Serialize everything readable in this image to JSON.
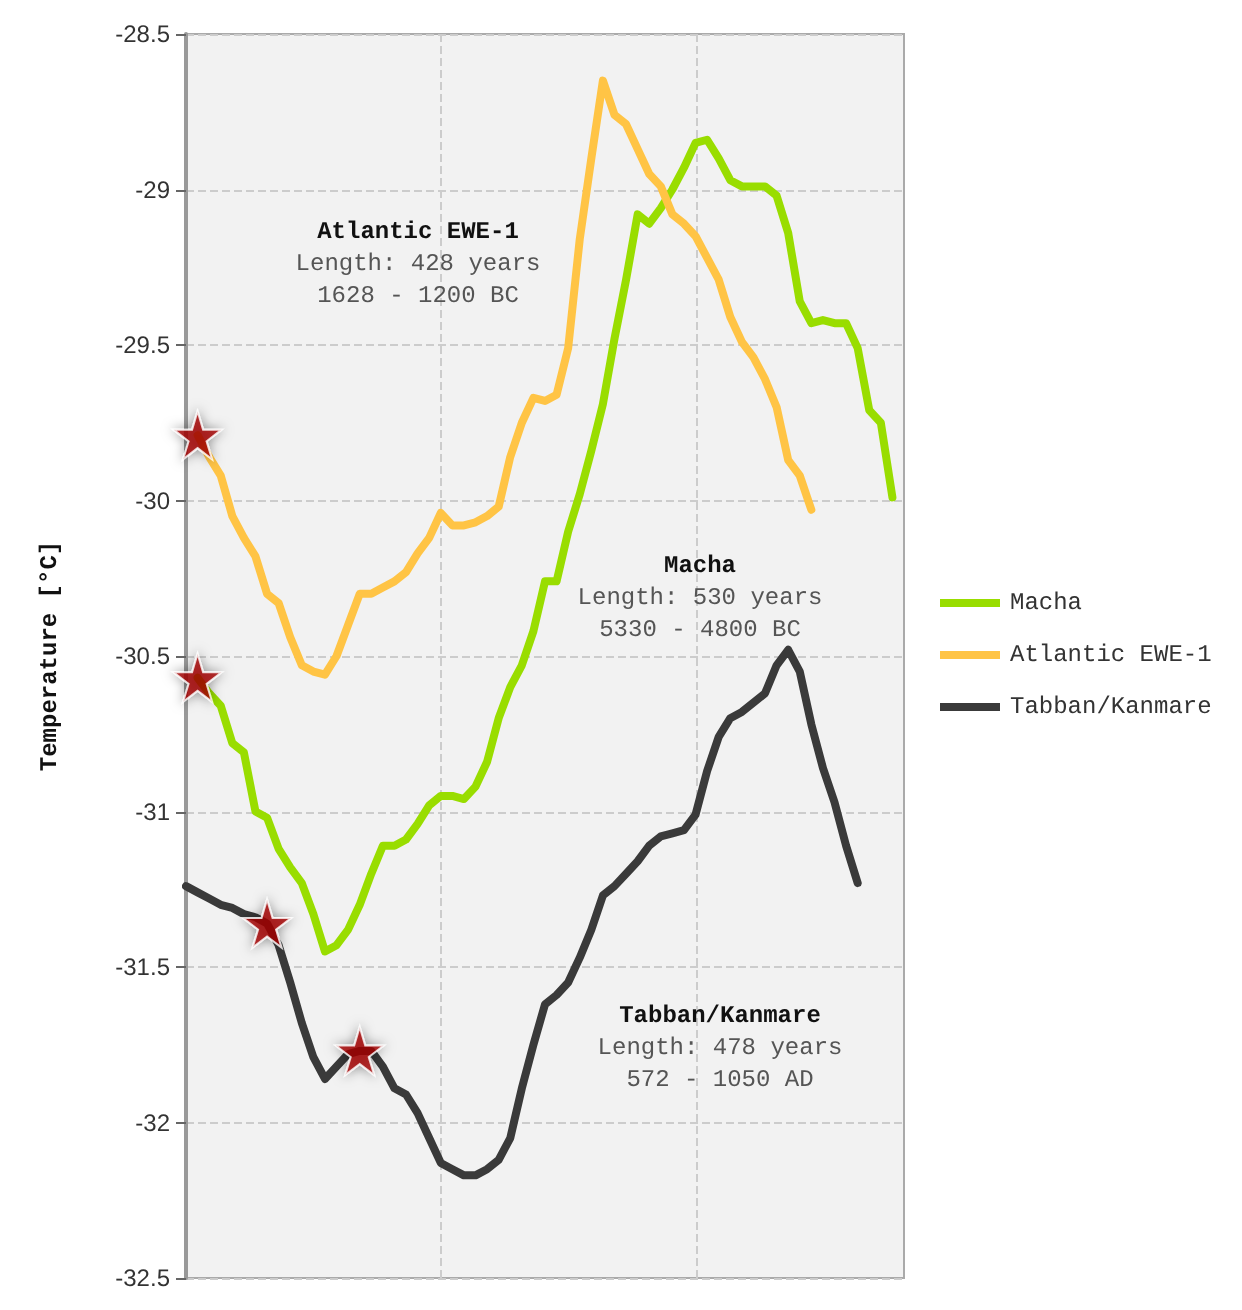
{
  "chart_data": {
    "type": "line",
    "ylabel": "Temperature [°C]",
    "categories": [
      null,
      null,
      null,
      null,
      null,
      null,
      null,
      null,
      null,
      null,
      null,
      null,
      null,
      null,
      null,
      null,
      null,
      null,
      null,
      null,
      null,
      null,
      null,
      null,
      null,
      null,
      null,
      null,
      null,
      null,
      null,
      null,
      null,
      null,
      null,
      null,
      null,
      null,
      null,
      null,
      null,
      null,
      null,
      null,
      null,
      null,
      null,
      null,
      null,
      null,
      null,
      null,
      null,
      null,
      null,
      null,
      null,
      null,
      null,
      null,
      null,
      null,
      null
    ],
    "ylim": [
      -32.5,
      -28.5
    ],
    "yticks": [
      -32.5,
      -32,
      -31.5,
      -31,
      -30.5,
      -30,
      -29.5,
      -29,
      -28.5
    ],
    "grid": true,
    "legend": "right",
    "line_style": "solid",
    "marker": "none",
    "series": [
      {
        "name": "Macha",
        "color": "#99dd00",
        "values": [
          null,
          -30.57,
          -30.62,
          -30.66,
          -30.78,
          -30.81,
          -31.0,
          -31.02,
          -31.12,
          -31.18,
          -31.23,
          -31.33,
          -31.45,
          -31.43,
          -31.38,
          -31.3,
          -31.2,
          -31.11,
          -31.11,
          -31.09,
          -31.04,
          -30.98,
          -30.95,
          -30.95,
          -30.96,
          -30.92,
          -30.84,
          -30.7,
          -30.6,
          -30.53,
          -30.42,
          -30.26,
          -30.26,
          -30.1,
          -29.98,
          -29.84,
          -29.69,
          -29.48,
          -29.29,
          -29.08,
          -29.11,
          -29.06,
          -29.0,
          -28.93,
          -28.85,
          -28.84,
          -28.9,
          -28.97,
          -28.99,
          -28.99,
          -28.99,
          -29.02,
          -29.14,
          -29.36,
          -29.43,
          -29.42,
          -29.43,
          -29.43,
          -29.51,
          -29.71,
          -29.75,
          -29.99,
          null
        ]
      },
      {
        "name": "Atlantic EWE-1",
        "color": "#ffc445",
        "values": [
          null,
          -29.79,
          -29.86,
          -29.92,
          -30.05,
          -30.12,
          -30.18,
          -30.3,
          -30.33,
          -30.44,
          -30.53,
          -30.55,
          -30.56,
          -30.5,
          -30.4,
          -30.3,
          -30.3,
          -30.28,
          -30.26,
          -30.23,
          -30.17,
          -30.12,
          -30.04,
          -30.08,
          -30.08,
          -30.07,
          -30.05,
          -30.02,
          -29.86,
          -29.75,
          -29.67,
          -29.68,
          -29.66,
          -29.51,
          -29.16,
          -28.9,
          -28.65,
          -28.76,
          -28.79,
          -28.87,
          -28.95,
          -28.99,
          -29.08,
          -29.11,
          -29.15,
          -29.22,
          -29.29,
          -29.41,
          -29.49,
          -29.54,
          -29.61,
          -29.7,
          -29.87,
          -29.92,
          -30.03,
          null,
          null,
          null,
          null,
          null,
          null,
          null,
          null
        ]
      },
      {
        "name": "Tabban/Kanmare",
        "color": "#3a3a3a",
        "values": [
          -31.24,
          -31.26,
          -31.28,
          -31.3,
          -31.31,
          -31.33,
          -31.34,
          -31.36,
          -31.43,
          -31.55,
          -31.68,
          -31.79,
          -31.86,
          -31.82,
          -31.78,
          -31.77,
          -31.77,
          -31.82,
          -31.89,
          -31.91,
          -31.97,
          -32.05,
          -32.13,
          -32.15,
          -32.17,
          -32.17,
          -32.15,
          -32.12,
          -32.05,
          -31.89,
          -31.75,
          -31.62,
          -31.59,
          -31.55,
          -31.47,
          -31.38,
          -31.27,
          -31.24,
          -31.2,
          -31.16,
          -31.11,
          -31.08,
          -31.07,
          -31.06,
          -31.01,
          -30.87,
          -30.76,
          -30.7,
          -30.68,
          -30.65,
          -30.62,
          -30.53,
          -30.48,
          -30.55,
          -30.72,
          -30.86,
          -30.97,
          -31.11,
          -31.23,
          null,
          null,
          null,
          null
        ]
      },
      {
        "type": "scatter",
        "marker": "star",
        "color": "#a30000",
        "values": [
          null,
          -29.79,
          null,
          null,
          null,
          null,
          null,
          -31.36,
          null,
          null,
          null,
          null,
          null,
          null,
          null,
          -31.77,
          null,
          null,
          null,
          null,
          null,
          null,
          null,
          null,
          null,
          null,
          null,
          null,
          null,
          null,
          null,
          null,
          null,
          null,
          null,
          null,
          null,
          null,
          null,
          null,
          null,
          null,
          null,
          null,
          null,
          null,
          null,
          null,
          null,
          null,
          null,
          null,
          null,
          null,
          null,
          null,
          null,
          null,
          null,
          null,
          null,
          null,
          null
        ]
      },
      {
        "type": "scatter",
        "marker": "star",
        "color": "#a30000",
        "values": [
          null,
          -30.57,
          null,
          null,
          null,
          null,
          null,
          null,
          null,
          null,
          null,
          null,
          null,
          null,
          null,
          null,
          null,
          null,
          null,
          null,
          null,
          null,
          null,
          null,
          null,
          null,
          null,
          null,
          null,
          null,
          null,
          null,
          null,
          null,
          null,
          null,
          null,
          null,
          null,
          null,
          null,
          null,
          null,
          null,
          null,
          null,
          null,
          null,
          null,
          null,
          null,
          null,
          null,
          null,
          null,
          null,
          null,
          null,
          null,
          null,
          null,
          null,
          null
        ]
      }
    ],
    "annotations": [
      "Atlantic EWE-1\nLength: 428 years\n1628 - 1200 BC",
      "Macha\nLength: 530 years\n5330 - 4800 BC",
      "Tabban/Kanmare\nLength: 478 years\n572 - 1050 AD"
    ]
  }
}
